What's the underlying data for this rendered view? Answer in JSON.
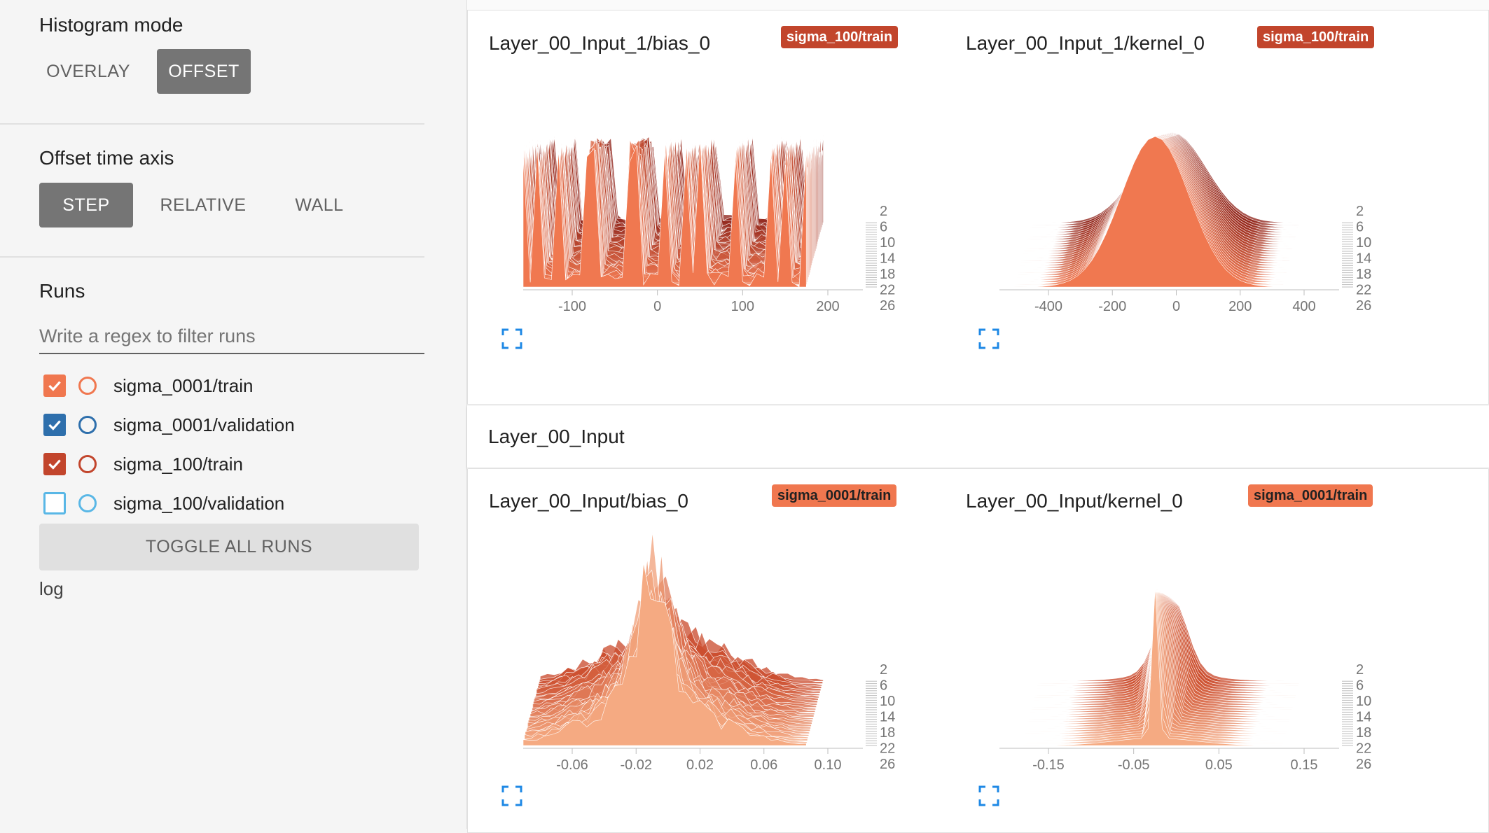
{
  "sidebar": {
    "histogram_mode": {
      "title": "Histogram mode",
      "options": [
        "OVERLAY",
        "OFFSET"
      ],
      "selected": "OFFSET"
    },
    "offset_time_axis": {
      "title": "Offset time axis",
      "options": [
        "STEP",
        "RELATIVE",
        "WALL"
      ],
      "selected": "STEP"
    },
    "runs": {
      "title": "Runs",
      "filter_placeholder": "Write a regex to filter runs",
      "items": [
        {
          "label": "sigma_0001/train",
          "checked": true,
          "color": "#f0774f"
        },
        {
          "label": "sigma_0001/validation",
          "checked": true,
          "color": "#2e6fac"
        },
        {
          "label": "sigma_100/train",
          "checked": true,
          "color": "#c2452c"
        },
        {
          "label": "sigma_100/validation",
          "checked": false,
          "color": "#59b7e6"
        }
      ],
      "toggle_all_label": "TOGGLE ALL RUNS",
      "log_label": "log"
    }
  },
  "main": {
    "group_title": "Layer_00_Input",
    "charts": [
      {
        "title": "Layer_00_Input_1/bias_0",
        "run": "sigma_100/train",
        "badge_color": "#c2452c",
        "x_ticks": [
          "-100",
          "0",
          "100",
          "200"
        ],
        "step_ticks": [
          "2",
          "6",
          "10",
          "14",
          "18",
          "22",
          "26"
        ]
      },
      {
        "title": "Layer_00_Input_1/kernel_0",
        "run": "sigma_100/train",
        "badge_color": "#c2452c",
        "x_ticks": [
          "-400",
          "-200",
          "0",
          "200",
          "400"
        ],
        "step_ticks": [
          "2",
          "6",
          "10",
          "14",
          "18",
          "22",
          "26"
        ]
      },
      {
        "title": "Layer_00_Input/bias_0",
        "run": "sigma_0001/train",
        "badge_color": "#f0774f",
        "x_ticks": [
          "-0.06",
          "-0.02",
          "0.02",
          "0.06",
          "0.10"
        ],
        "step_ticks": [
          "2",
          "6",
          "10",
          "14",
          "18",
          "22",
          "26"
        ]
      },
      {
        "title": "Layer_00_Input/kernel_0",
        "run": "sigma_0001/train",
        "badge_color": "#f0774f",
        "x_ticks": [
          "-0.15",
          "-0.05",
          "0.05",
          "0.15"
        ],
        "step_ticks": [
          "2",
          "6",
          "10",
          "14",
          "18",
          "22",
          "26"
        ]
      }
    ]
  }
}
